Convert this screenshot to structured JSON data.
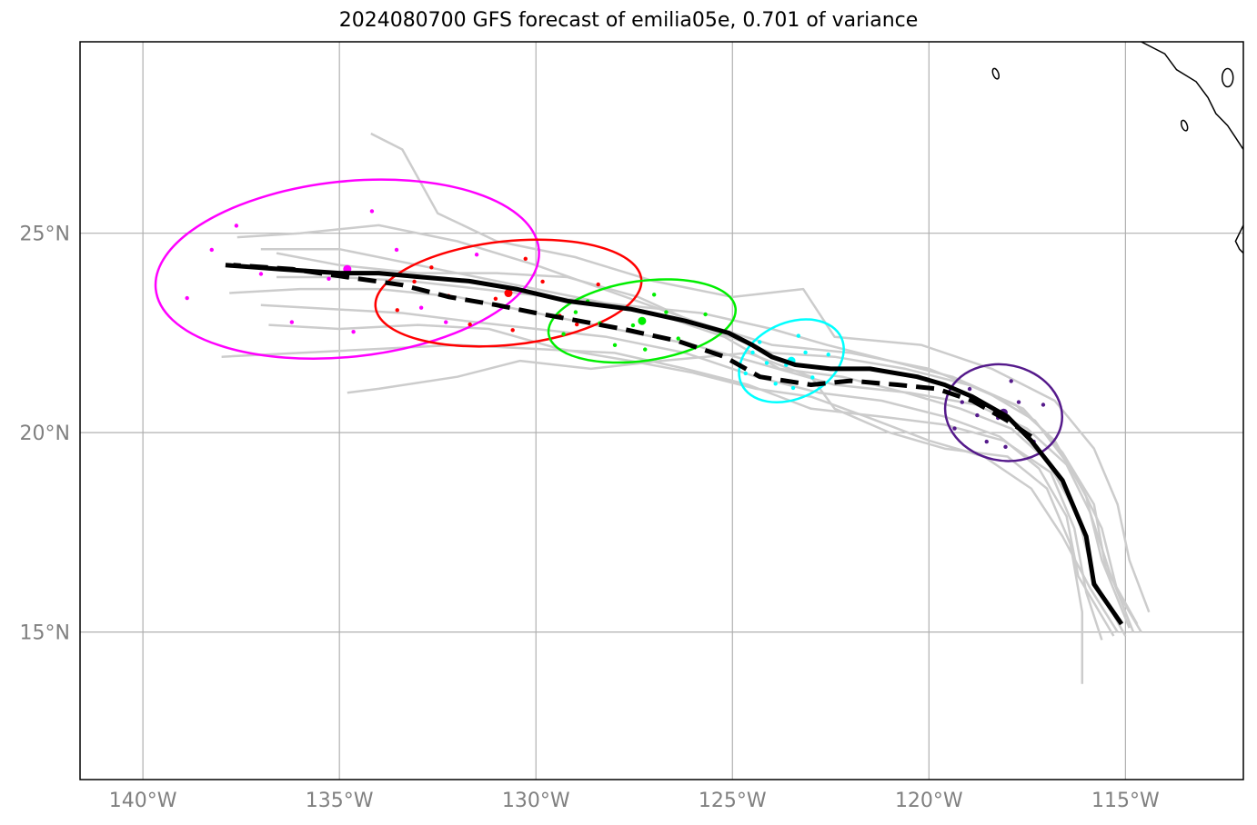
{
  "title": "2024080700 GFS forecast of emilia05e, 0.701 of variance",
  "map": {
    "lon_range": [
      -141.6,
      -112.0
    ],
    "lat_range": [
      11.3,
      29.8
    ],
    "lon_ticks": [
      {
        "value": -140,
        "label": "140°W"
      },
      {
        "value": -135,
        "label": "135°W"
      },
      {
        "value": -130,
        "label": "130°W"
      },
      {
        "value": -125,
        "label": "125°W"
      },
      {
        "value": -120,
        "label": "120°W"
      },
      {
        "value": -115,
        "label": "115°W"
      }
    ],
    "lat_ticks": [
      {
        "value": 15,
        "label": "15°N"
      },
      {
        "value": 20,
        "label": "20°N"
      },
      {
        "value": 25,
        "label": "25°N"
      }
    ],
    "grid": true
  },
  "colors": {
    "ensemble": "#cccccc",
    "mean": "#000000",
    "clusters": [
      "#ff00ff",
      "#ff0000",
      "#00ee00",
      "#00ffff",
      "#551a8b"
    ]
  },
  "chart_data": {
    "type": "map-tracks",
    "mean_track": [
      [
        -115.1,
        15.2
      ],
      [
        -115.8,
        16.2
      ],
      [
        -116.0,
        17.4
      ],
      [
        -116.6,
        18.8
      ],
      [
        -117.4,
        19.8
      ],
      [
        -118.0,
        20.4
      ],
      [
        -118.9,
        20.9
      ],
      [
        -119.6,
        21.2
      ],
      [
        -120.3,
        21.4
      ],
      [
        -121.5,
        21.6
      ],
      [
        -122.5,
        21.6
      ],
      [
        -123.4,
        21.7
      ],
      [
        -124.0,
        21.9
      ],
      [
        -124.5,
        22.2
      ],
      [
        -125.1,
        22.5
      ],
      [
        -126.2,
        22.8
      ],
      [
        -127.6,
        23.1
      ],
      [
        -129.2,
        23.3
      ],
      [
        -130.5,
        23.6
      ],
      [
        -131.7,
        23.8
      ],
      [
        -132.9,
        23.9
      ],
      [
        -134.0,
        24.0
      ],
      [
        -135.0,
        24.0
      ],
      [
        -136.5,
        24.1
      ],
      [
        -137.9,
        24.2
      ]
    ],
    "dashed_track": [
      [
        -117.4,
        19.9
      ],
      [
        -118.0,
        20.3
      ],
      [
        -118.9,
        20.8
      ],
      [
        -119.8,
        21.1
      ],
      [
        -120.8,
        21.2
      ],
      [
        -122.0,
        21.3
      ],
      [
        -123.0,
        21.2
      ],
      [
        -124.3,
        21.4
      ],
      [
        -125.2,
        21.9
      ],
      [
        -126.4,
        22.3
      ],
      [
        -127.8,
        22.6
      ],
      [
        -128.9,
        22.8
      ],
      [
        -130.0,
        23.0
      ],
      [
        -131.0,
        23.2
      ],
      [
        -132.2,
        23.4
      ],
      [
        -133.4,
        23.7
      ],
      [
        -134.8,
        23.9
      ],
      [
        -136.2,
        24.1
      ],
      [
        -137.7,
        24.2
      ]
    ],
    "ensemble_tracks": [
      [
        [
          -114.6,
          15.0
        ],
        [
          -115.2,
          16.0
        ],
        [
          -115.6,
          17.6
        ],
        [
          -116.3,
          19.0
        ],
        [
          -117.3,
          20.3
        ],
        [
          -118.5,
          21.0
        ],
        [
          -120.0,
          21.6
        ],
        [
          -122.0,
          22.0
        ],
        [
          -124.0,
          22.2
        ],
        [
          -126.0,
          22.8
        ],
        [
          -128.0,
          23.5
        ],
        [
          -130.0,
          24.2
        ],
        [
          -132.0,
          24.8
        ],
        [
          -134.0,
          25.2
        ],
        [
          -136.0,
          25.0
        ],
        [
          -137.6,
          24.9
        ]
      ],
      [
        [
          -114.8,
          15.0
        ],
        [
          -115.4,
          16.5
        ],
        [
          -115.9,
          18.0
        ],
        [
          -116.5,
          19.2
        ],
        [
          -117.5,
          20.1
        ],
        [
          -118.8,
          20.7
        ],
        [
          -120.5,
          21.0
        ],
        [
          -122.4,
          21.2
        ],
        [
          -124.2,
          21.7
        ],
        [
          -126.0,
          22.2
        ],
        [
          -128.0,
          22.6
        ],
        [
          -130.0,
          23.0
        ],
        [
          -132.0,
          23.4
        ],
        [
          -134.0,
          23.6
        ],
        [
          -136.0,
          23.6
        ],
        [
          -137.8,
          23.5
        ]
      ],
      [
        [
          -115.6,
          14.8
        ],
        [
          -116.0,
          16.0
        ],
        [
          -116.3,
          17.6
        ],
        [
          -116.9,
          19.0
        ],
        [
          -118.1,
          19.8
        ],
        [
          -119.6,
          20.2
        ],
        [
          -121.2,
          20.4
        ],
        [
          -123.0,
          20.6
        ],
        [
          -124.6,
          21.2
        ],
        [
          -126.2,
          21.6
        ],
        [
          -128.0,
          22.0
        ],
        [
          -130.0,
          22.1
        ],
        [
          -132.0,
          22.2
        ],
        [
          -134.0,
          22.1
        ],
        [
          -136.0,
          22.0
        ],
        [
          -138.0,
          21.9
        ]
      ],
      [
        [
          -116.1,
          13.7
        ],
        [
          -116.1,
          15.5
        ],
        [
          -116.4,
          17.2
        ],
        [
          -117.0,
          18.6
        ],
        [
          -118.0,
          19.4
        ],
        [
          -119.6,
          19.6
        ],
        [
          -121.0,
          20.0
        ],
        [
          -122.4,
          20.6
        ],
        [
          -123.0,
          21.4
        ],
        [
          -124.6,
          22.0
        ],
        [
          -126.8,
          21.8
        ],
        [
          -128.6,
          21.6
        ],
        [
          -130.4,
          21.8
        ],
        [
          -132.0,
          21.4
        ],
        [
          -134.0,
          21.1
        ],
        [
          -134.8,
          21.0
        ]
      ],
      [
        [
          -114.4,
          15.5
        ],
        [
          -114.9,
          16.8
        ],
        [
          -115.2,
          18.2
        ],
        [
          -115.8,
          19.6
        ],
        [
          -116.8,
          20.8
        ],
        [
          -118.4,
          21.6
        ],
        [
          -120.2,
          22.2
        ],
        [
          -122.4,
          22.4
        ],
        [
          -123.2,
          23.6
        ],
        [
          -125.0,
          23.4
        ],
        [
          -127.0,
          23.8
        ],
        [
          -129.0,
          24.4
        ],
        [
          -131.0,
          24.8
        ],
        [
          -132.5,
          25.5
        ],
        [
          -133.4,
          27.1
        ],
        [
          -134.2,
          27.5
        ]
      ],
      [
        [
          -115.0,
          14.9
        ],
        [
          -115.8,
          16.3
        ],
        [
          -116.2,
          17.9
        ],
        [
          -117.0,
          19.3
        ],
        [
          -117.9,
          20.1
        ],
        [
          -119.2,
          20.6
        ],
        [
          -120.6,
          21.0
        ],
        [
          -122.2,
          21.4
        ],
        [
          -123.8,
          21.6
        ],
        [
          -125.2,
          22.4
        ],
        [
          -127.0,
          23.0
        ],
        [
          -129.0,
          23.4
        ],
        [
          -131.0,
          23.8
        ],
        [
          -133.0,
          24.2
        ],
        [
          -135.0,
          24.6
        ],
        [
          -137.0,
          24.6
        ]
      ],
      [
        [
          -114.7,
          15.2
        ],
        [
          -115.5,
          16.6
        ],
        [
          -115.8,
          18.2
        ],
        [
          -116.6,
          19.5
        ],
        [
          -117.6,
          20.6
        ],
        [
          -119.0,
          21.2
        ],
        [
          -120.6,
          21.6
        ],
        [
          -122.4,
          21.9
        ],
        [
          -124.0,
          22.0
        ],
        [
          -125.6,
          22.6
        ],
        [
          -127.4,
          23.4
        ],
        [
          -129.2,
          23.9
        ],
        [
          -131.0,
          24.0
        ],
        [
          -133.0,
          24.0
        ],
        [
          -135.0,
          24.2
        ],
        [
          -136.6,
          24.5
        ]
      ],
      [
        [
          -115.3,
          14.9
        ],
        [
          -116.2,
          16.4
        ],
        [
          -116.5,
          17.9
        ],
        [
          -117.2,
          19.1
        ],
        [
          -118.2,
          19.9
        ],
        [
          -119.6,
          20.4
        ],
        [
          -121.2,
          20.8
        ],
        [
          -122.8,
          21.0
        ],
        [
          -124.4,
          21.4
        ],
        [
          -126.2,
          22.0
        ],
        [
          -128.2,
          22.4
        ],
        [
          -130.0,
          22.6
        ],
        [
          -131.8,
          22.8
        ],
        [
          -133.4,
          23.0
        ],
        [
          -135.2,
          23.1
        ],
        [
          -137.0,
          23.2
        ]
      ],
      [
        [
          -114.9,
          15.1
        ],
        [
          -115.6,
          16.8
        ],
        [
          -116.0,
          18.4
        ],
        [
          -116.8,
          19.8
        ],
        [
          -117.8,
          20.7
        ],
        [
          -119.4,
          21.4
        ],
        [
          -121.0,
          21.8
        ],
        [
          -122.6,
          22.2
        ],
        [
          -124.0,
          22.6
        ],
        [
          -125.8,
          23.0
        ],
        [
          -127.8,
          23.2
        ],
        [
          -129.6,
          23.4
        ],
        [
          -131.4,
          23.6
        ],
        [
          -133.2,
          23.8
        ],
        [
          -135.0,
          23.9
        ],
        [
          -136.6,
          23.9
        ]
      ],
      [
        [
          -115.2,
          15.0
        ],
        [
          -115.9,
          16.1
        ],
        [
          -116.6,
          17.4
        ],
        [
          -117.4,
          18.6
        ],
        [
          -118.6,
          19.4
        ],
        [
          -120.0,
          19.8
        ],
        [
          -121.6,
          20.4
        ],
        [
          -123.0,
          20.9
        ],
        [
          -124.4,
          21.1
        ],
        [
          -126.0,
          21.5
        ],
        [
          -127.6,
          21.8
        ],
        [
          -129.4,
          22.1
        ],
        [
          -131.2,
          22.6
        ],
        [
          -133.0,
          22.7
        ],
        [
          -135.0,
          22.6
        ],
        [
          -136.8,
          22.7
        ]
      ]
    ],
    "clusters": [
      {
        "center": [
          -134.8,
          24.1
        ],
        "rx_deg": 4.9,
        "ry_deg": 2.2,
        "rotation": -6
      },
      {
        "center": [
          -130.7,
          23.5
        ],
        "rx_deg": 3.4,
        "ry_deg": 1.3,
        "rotation": -6
      },
      {
        "center": [
          -127.3,
          22.8
        ],
        "rx_deg": 2.4,
        "ry_deg": 1.0,
        "rotation": -8
      },
      {
        "center": [
          -123.5,
          21.8
        ],
        "rx_deg": 1.4,
        "ry_deg": 0.95,
        "rotation": -25
      },
      {
        "center": [
          -118.1,
          20.5
        ],
        "rx_deg": 1.5,
        "ry_deg": 1.2,
        "rotation": 12
      }
    ],
    "coastline": [
      [
        -114.6,
        29.8
      ],
      [
        -114.0,
        29.5
      ],
      [
        -113.7,
        29.1
      ],
      [
        -113.2,
        28.8
      ],
      [
        -112.9,
        28.4
      ],
      [
        -112.7,
        28.0
      ],
      [
        -112.4,
        27.7
      ],
      [
        -112.2,
        27.4
      ],
      [
        -112.0,
        27.1
      ]
    ],
    "coastline2": [
      [
        -112.0,
        25.2
      ],
      [
        -112.1,
        25.0
      ],
      [
        -112.2,
        24.8
      ],
      [
        -112.1,
        24.6
      ],
      [
        -112.0,
        24.5
      ]
    ]
  }
}
